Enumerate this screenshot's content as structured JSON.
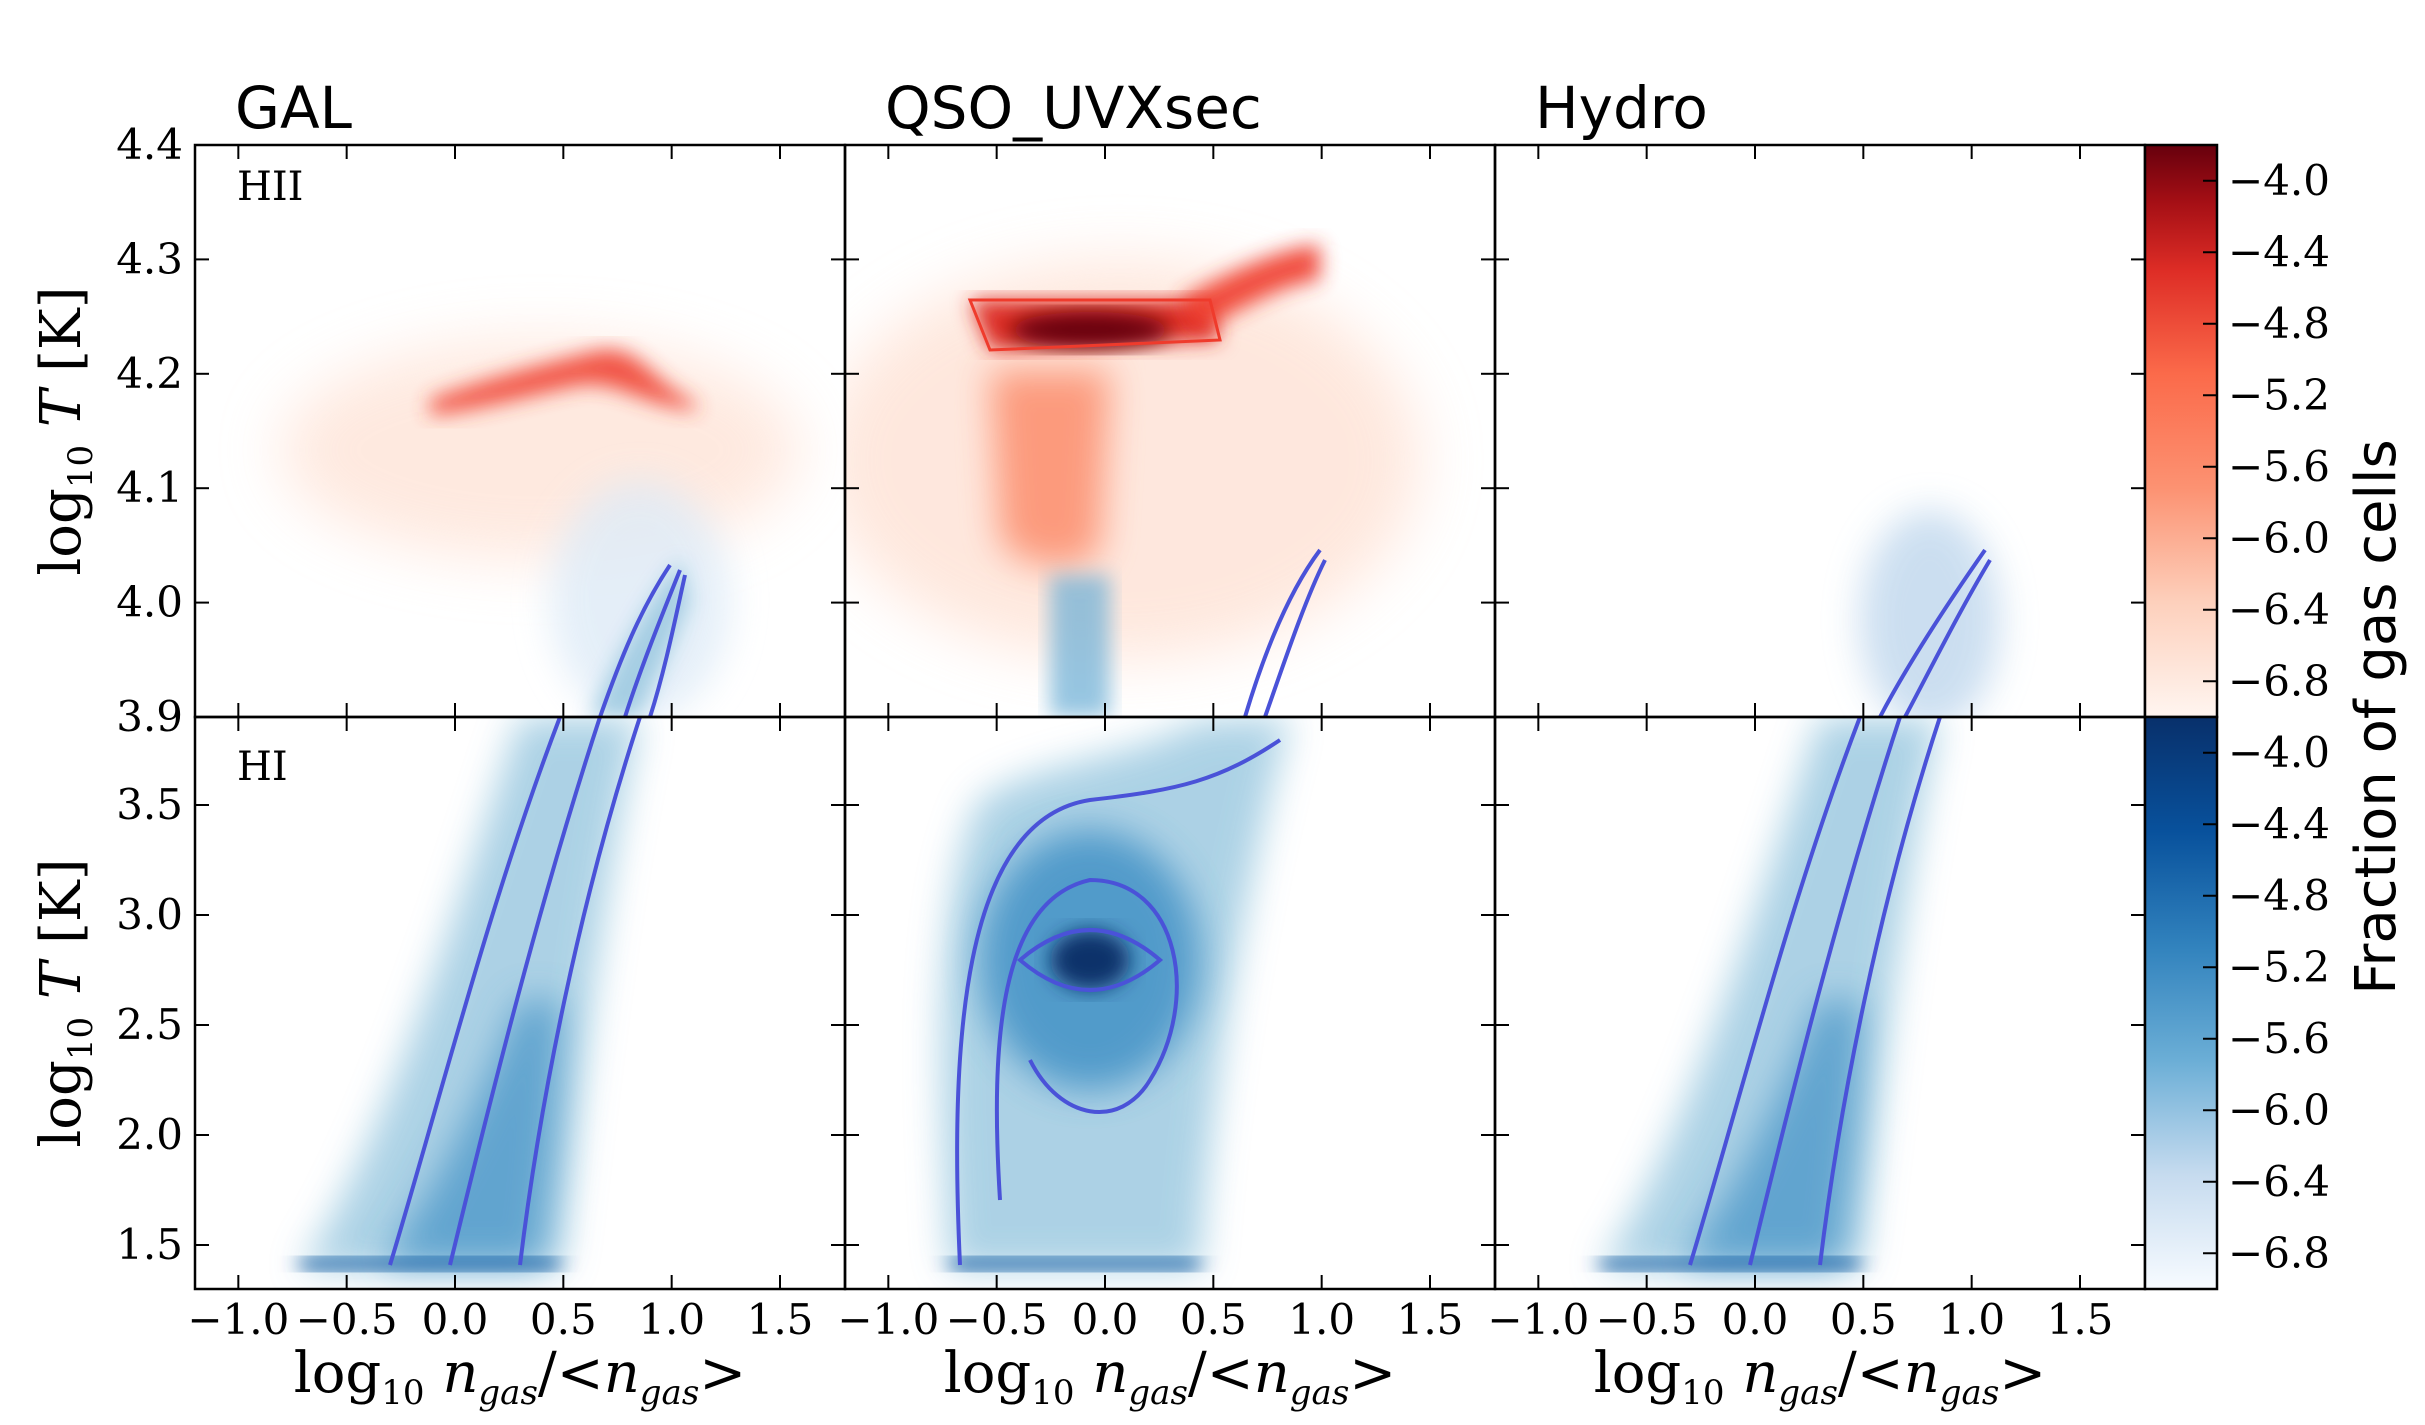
{
  "chart_data": {
    "type": "heatmap",
    "panel_titles": [
      "GAL",
      "QSO_UVXsec",
      "Hydro"
    ],
    "row_labels": [
      "HII",
      "HI"
    ],
    "xlabel": "log10 ngas/<ngas>",
    "ylabel": "log10 T [K]",
    "xlim": [
      -1.2,
      1.8
    ],
    "xticks": [
      -1.0,
      -0.5,
      0.0,
      0.5,
      1.0,
      1.5
    ],
    "xtick_labels": [
      "−1.0",
      "−0.5",
      "0.0",
      "0.5",
      "1.0",
      "1.5"
    ],
    "top_row": {
      "ylim": [
        3.9,
        4.4
      ],
      "yticks": [
        3.9,
        4.0,
        4.1,
        4.2,
        4.3,
        4.4
      ],
      "ytick_labels": [
        "3.9",
        "4.0",
        "4.1",
        "4.2",
        "4.3",
        "4.4"
      ]
    },
    "bottom_row": {
      "ylim": [
        1.3,
        3.9
      ],
      "yticks": [
        1.5,
        2.0,
        2.5,
        3.0,
        3.5
      ],
      "ytick_labels": [
        "1.5",
        "2.0",
        "2.5",
        "3.0",
        "3.5"
      ]
    },
    "colorbar": {
      "label": "Fraction of gas cells",
      "range": [
        -7.0,
        -3.8
      ],
      "ticks": [
        -4.0,
        -4.4,
        -4.8,
        -5.2,
        -5.6,
        -6.0,
        -6.4,
        -6.8
      ],
      "tick_labels": [
        "−4.0",
        "−4.4",
        "−4.8",
        "−5.2",
        "−5.6",
        "−6.0",
        "−6.4",
        "−6.8"
      ],
      "hii_colormap": "Reds",
      "hi_colormap": "Blues"
    },
    "colors": {
      "hii_high": "#67000d",
      "hii_mid": "#ef3b2c",
      "hii_low": "#fee0d2",
      "hi_high": "#08306b",
      "hi_mid": "#4292c6",
      "hi_low": "#eff6fc",
      "contour": "#4a52d8"
    }
  }
}
